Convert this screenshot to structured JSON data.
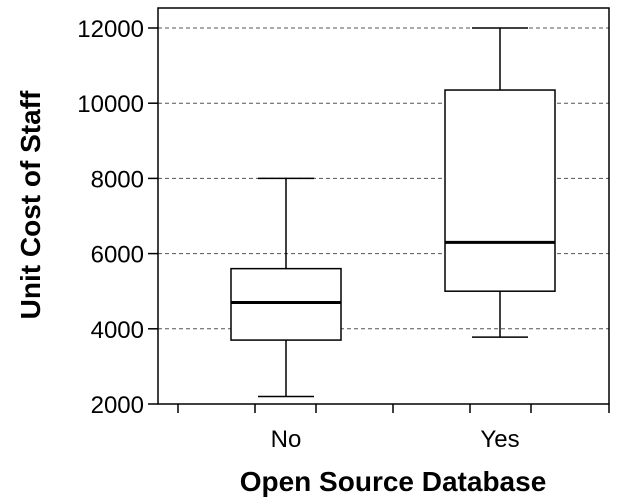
{
  "chart_data": {
    "type": "box",
    "title": "",
    "xlabel": "Open Source Database",
    "ylabel": "Unit Cost of Staff",
    "ylim": [
      2000,
      12000
    ],
    "yticks": [
      2000,
      4000,
      6000,
      8000,
      10000,
      12000
    ],
    "ytick_labels": [
      "2000",
      "4000",
      "6000",
      "8000",
      "10000",
      "12000"
    ],
    "grid": "horizontal-dashed",
    "categories": [
      "No",
      "Yes"
    ],
    "boxes": [
      {
        "category": "No",
        "min": 2200,
        "q1": 3700,
        "median": 4700,
        "q3": 5600,
        "max": 8000
      },
      {
        "category": "Yes",
        "min": 3780,
        "q1": 5000,
        "median": 6300,
        "q3": 10350,
        "max": 12000
      }
    ]
  }
}
